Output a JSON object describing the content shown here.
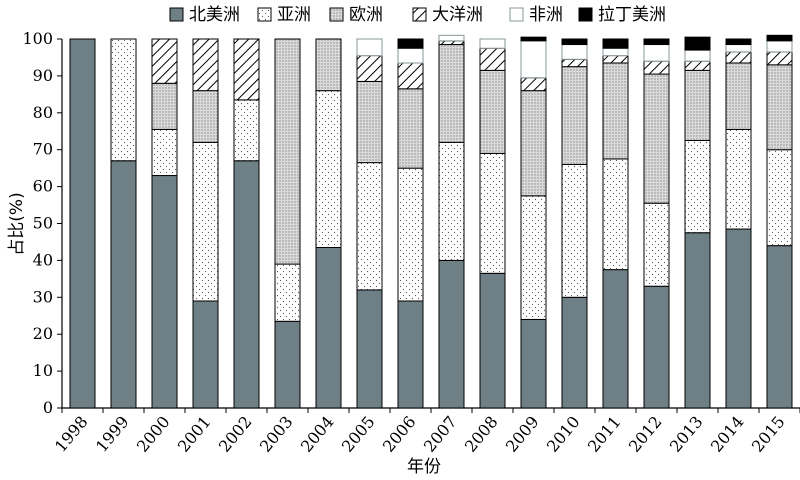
{
  "chart_data": {
    "type": "bar",
    "stacked": true,
    "title": "",
    "xlabel": "年份",
    "ylabel": "占比(%)",
    "ylim": [
      0,
      100
    ],
    "yticks": [
      0,
      10,
      20,
      30,
      40,
      50,
      60,
      70,
      80,
      90,
      100
    ],
    "categories": [
      "1998",
      "1999",
      "2000",
      "2001",
      "2002",
      "2003",
      "2004",
      "2005",
      "2006",
      "2007",
      "2008",
      "2009",
      "2010",
      "2011",
      "2012",
      "2013",
      "2014",
      "2015"
    ],
    "legend_position": "top",
    "series": [
      {
        "name": "北美洲",
        "pattern": "solid-gray",
        "color": "#6e7f85",
        "values": [
          100,
          67,
          63,
          29,
          67,
          23.5,
          43.5,
          32,
          29,
          40,
          36.5,
          24,
          30,
          37.5,
          33,
          47.5,
          48.5,
          44
        ]
      },
      {
        "name": "亚洲",
        "pattern": "dots",
        "color": "#ffffff",
        "values": [
          0,
          33,
          12.5,
          43,
          16.5,
          15.5,
          42.5,
          34.5,
          36,
          32,
          32.5,
          33.5,
          36,
          30,
          22.5,
          25,
          27,
          26
        ]
      },
      {
        "name": "欧洲",
        "pattern": "dense-dots",
        "color": "#d9d9d9",
        "values": [
          0,
          0,
          12.5,
          14,
          0,
          61,
          14,
          22,
          21.5,
          26.5,
          22.5,
          28.5,
          26.5,
          26,
          35,
          19,
          18,
          23
        ]
      },
      {
        "name": "大洋洲",
        "pattern": "diagonal-hatch",
        "color": "#ffffff",
        "values": [
          0,
          0,
          12,
          14,
          16.5,
          0,
          0,
          7,
          7,
          1,
          6,
          3.5,
          2,
          2,
          3.5,
          2.5,
          3,
          3.5
        ]
      },
      {
        "name": "非洲",
        "pattern": "outline",
        "color": "#ffffff",
        "values": [
          0,
          0,
          0,
          0,
          0,
          0,
          0,
          4.5,
          4,
          1.5,
          2.5,
          10,
          4,
          2,
          4.5,
          3,
          2,
          3
        ]
      },
      {
        "name": "拉丁美洲",
        "pattern": "solid-black",
        "color": "#000000",
        "values": [
          0,
          0,
          0,
          0,
          0,
          0,
          0,
          0,
          2.5,
          0,
          0,
          1,
          1.5,
          2.5,
          1.5,
          3.5,
          1.5,
          1.5
        ]
      }
    ]
  }
}
